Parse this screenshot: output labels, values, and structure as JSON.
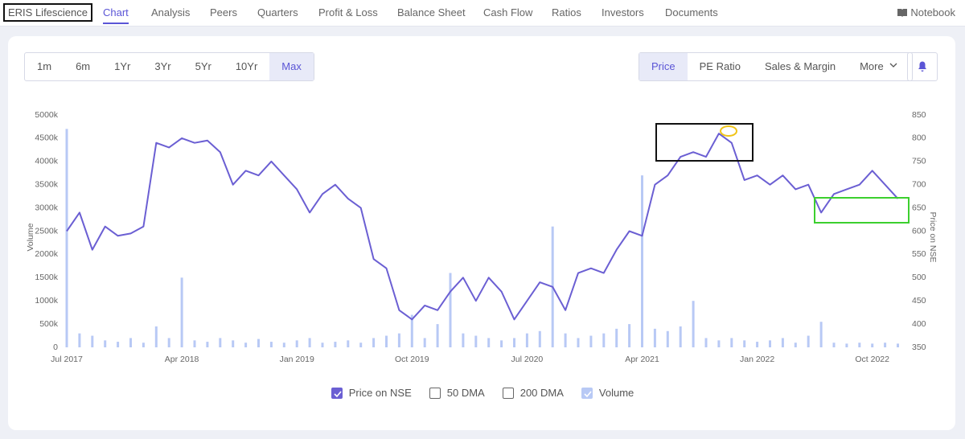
{
  "nav": {
    "brand": "ERIS Lifescience",
    "items": [
      "Chart",
      "Analysis",
      "Peers",
      "Quarters",
      "Profit & Loss",
      "Balance Sheet",
      "Cash Flow",
      "Ratios",
      "Investors",
      "Documents"
    ],
    "active": 0,
    "notebook": "Notebook"
  },
  "range_buttons": {
    "items": [
      "1m",
      "6m",
      "1Yr",
      "3Yr",
      "5Yr",
      "10Yr",
      "Max"
    ],
    "selected": 6
  },
  "metric_buttons": {
    "items": [
      "Price",
      "PE Ratio",
      "Sales & Margin",
      "More"
    ],
    "selected": 0
  },
  "chart_data": {
    "type": "line_bar",
    "ylabel": "Volume",
    "y2label": "Price on NSE",
    "categories": [
      "Jul 2017",
      null,
      null,
      null,
      null,
      null,
      null,
      null,
      null,
      "Apr 2018",
      null,
      null,
      null,
      null,
      null,
      null,
      null,
      null,
      "Jan 2019",
      null,
      null,
      null,
      null,
      null,
      null,
      null,
      null,
      "Oct 2019",
      null,
      null,
      null,
      null,
      null,
      null,
      null,
      null,
      "Jul 2020",
      null,
      null,
      null,
      null,
      null,
      null,
      null,
      null,
      "Apr 2021",
      null,
      null,
      null,
      null,
      null,
      null,
      null,
      null,
      "Jan 2022",
      null,
      null,
      null,
      null,
      null,
      null,
      null,
      null,
      "Oct 2022",
      null,
      null
    ],
    "series": [
      {
        "name": "Price on NSE",
        "color": "#6b5fd3",
        "axis": "y2",
        "kind": "line",
        "checked": true,
        "values": [
          600,
          640,
          560,
          610,
          590,
          595,
          610,
          790,
          780,
          800,
          790,
          795,
          770,
          700,
          730,
          720,
          750,
          720,
          690,
          640,
          680,
          700,
          670,
          650,
          540,
          520,
          430,
          410,
          440,
          430,
          470,
          500,
          450,
          500,
          470,
          410,
          450,
          490,
          480,
          430,
          510,
          520,
          510,
          560,
          600,
          590,
          700,
          720,
          760,
          770,
          760,
          810,
          790,
          710,
          720,
          700,
          720,
          690,
          700,
          640,
          680,
          690,
          700,
          730,
          700,
          670
        ]
      },
      {
        "name": "Volume",
        "color": "#b8c9f5",
        "axis": "y",
        "kind": "bar",
        "checked": true,
        "values": [
          4700000,
          300000,
          250000,
          150000,
          120000,
          200000,
          100000,
          450000,
          200000,
          1500000,
          150000,
          120000,
          200000,
          150000,
          100000,
          180000,
          120000,
          100000,
          150000,
          200000,
          100000,
          120000,
          150000,
          100000,
          200000,
          250000,
          300000,
          700000,
          200000,
          500000,
          1600000,
          300000,
          250000,
          200000,
          150000,
          200000,
          300000,
          350000,
          2600000,
          300000,
          200000,
          250000,
          300000,
          400000,
          500000,
          3700000,
          400000,
          350000,
          450000,
          1000000,
          200000,
          150000,
          200000,
          150000,
          120000,
          150000,
          200000,
          100000,
          250000,
          550000,
          100000,
          80000,
          100000,
          80000,
          100000,
          80000
        ]
      }
    ],
    "unchecked_legend": [
      "50 DMA",
      "200 DMA"
    ],
    "ylim": [
      0,
      5000000
    ],
    "yticks": [
      0,
      {
        "value": 500000,
        "label": "500k"
      },
      {
        "value": 1000000,
        "label": "1000k"
      },
      {
        "value": 1500000,
        "label": "1500k"
      },
      {
        "value": 2000000,
        "label": "2000k"
      },
      {
        "value": 2500000,
        "label": "2500k"
      },
      {
        "value": 3000000,
        "label": "3000k"
      },
      {
        "value": 3500000,
        "label": "3500k"
      },
      {
        "value": 4000000,
        "label": "4000k"
      },
      {
        "value": 4500000,
        "label": "4500k"
      },
      {
        "value": 5000000,
        "label": "5000k"
      }
    ],
    "y2lim": [
      350,
      850
    ],
    "y2ticks": [
      350,
      400,
      450,
      500,
      550,
      600,
      650,
      700,
      750,
      800,
      850
    ]
  }
}
